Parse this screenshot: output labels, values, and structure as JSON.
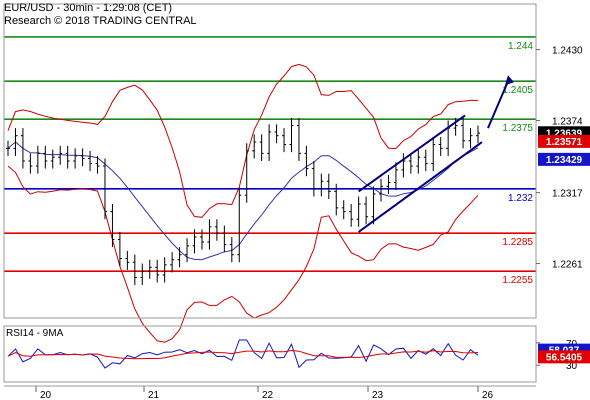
{
  "header": {
    "line1": "EUR/USD - 30min - 1:29:08 (CET)",
    "line2": "Research © 2018 TRADING CENTRAL"
  },
  "colors": {
    "green": "#1a8a1a",
    "red": "#e00000",
    "blue": "#0000cc",
    "navy": "#000080",
    "bands": "#cc0000",
    "ma": "#3333aa",
    "candles": "#000000",
    "price_badge": "#000000",
    "ma_red_badge": "#e00000",
    "ma_blue_badge": "#1414c8"
  },
  "chart_data": [
    {
      "type": "line",
      "title": "",
      "y_axis_ticks": [
        "1.2430",
        "1.2374",
        "1.2317",
        "1.2261"
      ],
      "x_ticks": [
        "20",
        "21",
        "22",
        "23",
        "26"
      ],
      "level_lines": [
        {
          "label": "1.244",
          "value": 1.244,
          "color": "green"
        },
        {
          "label": "1.2405",
          "value": 1.2405,
          "color": "green"
        },
        {
          "label": "1.2375",
          "value": 1.2375,
          "color": "green"
        },
        {
          "label": "1.232",
          "value": 1.232,
          "color": "blue"
        },
        {
          "label": "1.2285",
          "value": 1.2285,
          "color": "red"
        },
        {
          "label": "1.2255",
          "value": 1.2255,
          "color": "red"
        }
      ],
      "price_badges": [
        {
          "label": "1.23639",
          "color": "price_badge"
        },
        {
          "label": "1.23571",
          "color": "ma_red_badge"
        },
        {
          "label": "1.23429",
          "color": "ma_blue_badge"
        }
      ],
      "close_series": [
        1.2352,
        1.2362,
        1.2342,
        1.2338,
        1.2348,
        1.2342,
        1.2345,
        1.2348,
        1.2342,
        1.2346,
        1.2344,
        1.234,
        1.2338,
        1.2302,
        1.228,
        1.2265,
        1.2262,
        1.225,
        1.2255,
        1.2258,
        1.2252,
        1.226,
        1.2264,
        1.2268,
        1.2275,
        1.2282,
        1.2278,
        1.229,
        1.2285,
        1.2276,
        1.2268,
        1.2315,
        1.235,
        1.2357,
        1.2348,
        1.2365,
        1.2362,
        1.2355,
        1.237,
        1.2348,
        1.2336,
        1.232,
        1.2326,
        1.2318,
        1.2305,
        1.2302,
        1.2296,
        1.2308,
        1.2298,
        1.2316,
        1.2322,
        1.2325,
        1.2335,
        1.2342,
        1.2338,
        1.2345,
        1.234,
        1.2355,
        1.2352,
        1.2368,
        1.237,
        1.2358,
        1.2362,
        1.2364
      ],
      "annotations": [
        "ascending channel",
        "target arrow up"
      ]
    },
    {
      "type": "line",
      "title": "RSI14 - 9MA",
      "y_axis_ticks": [
        "70",
        "30"
      ],
      "series_values": [
        {
          "label": "58.037",
          "color": "ma_blue_badge"
        },
        {
          "label": "56.5405",
          "color": "ma_red_badge"
        }
      ]
    }
  ]
}
